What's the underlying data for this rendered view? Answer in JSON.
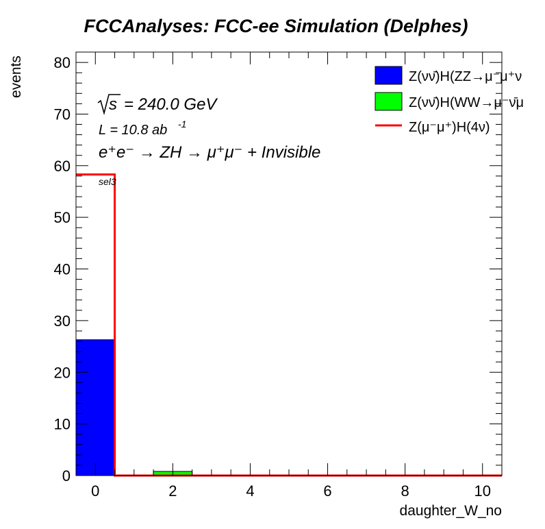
{
  "chart_data": {
    "type": "bar",
    "title": "FCCAnalyses: FCC-ee Simulation (Delphes)",
    "xlabel": "daughter_W_no",
    "ylabel": "events",
    "xlim": [
      -0.5,
      10.5
    ],
    "ylim": [
      0,
      82
    ],
    "xticks": [
      0,
      2,
      4,
      6,
      8,
      10
    ],
    "yticks": [
      0,
      10,
      20,
      30,
      40,
      50,
      60,
      70,
      80
    ],
    "annotations": {
      "sqrt_s": "= 240.0 GeV",
      "luminosity": "L = 10.8 ab",
      "lumi_exp": "-1",
      "process": "e⁺e⁻ → ZH → μ⁺μ⁻ + Invisible",
      "selection": "sel3"
    },
    "series": [
      {
        "name": "Z(νν̄)H(ZZ→μ⁻μ⁺ν",
        "style": "filled",
        "color": "#0000ff",
        "bins": [
          {
            "x": 0,
            "y": 26.3
          },
          {
            "x": 2,
            "y": 0
          }
        ]
      },
      {
        "name": "Z(νν̄)H(WW→μ⁻ν̄μ",
        "style": "filled",
        "color": "#00ff00",
        "bins": [
          {
            "x": 0,
            "y": 0
          },
          {
            "x": 2,
            "y": 0.8
          }
        ]
      },
      {
        "name": "Z(μ⁻μ⁺)H(4ν)",
        "style": "line",
        "color": "#ff0000",
        "bins": [
          {
            "x": 0,
            "y": 58.3
          },
          {
            "x": 2,
            "y": 0
          }
        ]
      }
    ]
  }
}
